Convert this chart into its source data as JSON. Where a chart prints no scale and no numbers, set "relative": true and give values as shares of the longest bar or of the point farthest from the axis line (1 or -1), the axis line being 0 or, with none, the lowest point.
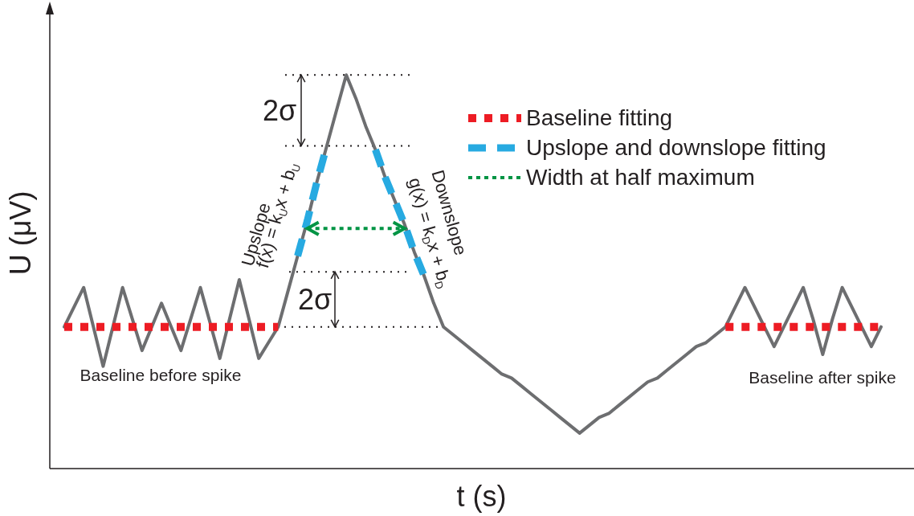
{
  "chart_data": {
    "type": "line",
    "relative": true,
    "xlabel": "t (s)",
    "ylabel": "U (μV)",
    "marker": "none",
    "legend": "top right",
    "categories": [
      null,
      null,
      null,
      null,
      null,
      null,
      null,
      null,
      null,
      null,
      null,
      null,
      null,
      null,
      null,
      null,
      null,
      null,
      null,
      null,
      null,
      null,
      null,
      null,
      null,
      null,
      null,
      null,
      null,
      null,
      null,
      null,
      null,
      null,
      null,
      null,
      null,
      null,
      null,
      null,
      null,
      null,
      null,
      null,
      null,
      null,
      null,
      null,
      null,
      null,
      null,
      null,
      null,
      null,
      null,
      null,
      null,
      null,
      null,
      null,
      null,
      null,
      null,
      null,
      null,
      null,
      null,
      null,
      null,
      null,
      null,
      null,
      null,
      null,
      null,
      null,
      null,
      null,
      null,
      null,
      null,
      null,
      null,
      null,
      null
    ],
    "series": [
      {
        "color": "#6d6e70",
        "line_style": "solid",
        "values": [
          0.36,
          0.41,
          0.46,
          0.36,
          0.26,
          0.36,
          0.46,
          0.38,
          0.3,
          0.36,
          0.42,
          0.36,
          0.3,
          0.38,
          0.46,
          0.37,
          0.28,
          0.38,
          0.48,
          0.38,
          0.28,
          0.32,
          0.36,
          0.45,
          0.54,
          0.63,
          0.73,
          0.82,
          0.91,
          1.0,
          0.94,
          0.87,
          0.81,
          0.74,
          0.68,
          0.62,
          0.55,
          0.49,
          0.42,
          0.36,
          0.34,
          0.32,
          0.3,
          0.28,
          0.26,
          0.24,
          0.23,
          0.21,
          0.19,
          0.17,
          0.15,
          0.13,
          0.11,
          0.09,
          0.11,
          0.13,
          0.14,
          0.16,
          0.18,
          0.2,
          0.22,
          0.23,
          0.25,
          0.27,
          0.29,
          0.31,
          0.32,
          0.34,
          0.36,
          0.41,
          0.46,
          0.41,
          0.36,
          0.31,
          0.36,
          0.41,
          0.46,
          0.38,
          0.29,
          0.38,
          0.46,
          0.41,
          0.36,
          0.31,
          0.36
        ]
      },
      {
        "name": "Baseline fitting",
        "color": "#ed1c24",
        "line_style": "dotted",
        "values": [
          0.36,
          0.36,
          0.36,
          0.36,
          0.36,
          0.36,
          0.36,
          0.36,
          0.36,
          0.36,
          0.36,
          0.36,
          0.36,
          0.36,
          0.36,
          0.36,
          0.36,
          0.36,
          0.36,
          0.36,
          0.36,
          0.36,
          0.36,
          null,
          null,
          null,
          null,
          null,
          null,
          null,
          null,
          null,
          null,
          null,
          null,
          null,
          null,
          null,
          null,
          null,
          null,
          null,
          null,
          null,
          null,
          null,
          null,
          null,
          null,
          null,
          null,
          null,
          null,
          null,
          null,
          null,
          null,
          null,
          null,
          null,
          null,
          null,
          null,
          null,
          null,
          null,
          null,
          null,
          0.36,
          0.36,
          0.36,
          0.36,
          0.36,
          0.36,
          0.36,
          0.36,
          0.36,
          0.36,
          0.36,
          0.36,
          0.36,
          0.36,
          0.36,
          0.36,
          0.36
        ]
      },
      {
        "name": "Upslope and downslope fitting",
        "color": "#27aae1",
        "line_style": "dashed",
        "values": [
          null,
          null,
          null,
          null,
          null,
          null,
          null,
          null,
          null,
          null,
          null,
          null,
          null,
          null,
          null,
          null,
          null,
          null,
          null,
          null,
          null,
          null,
          null,
          null,
          0.54,
          0.63,
          0.73,
          0.82,
          null,
          null,
          null,
          null,
          0.81,
          0.74,
          0.68,
          0.62,
          0.55,
          0.49,
          null,
          null,
          null,
          null,
          null,
          null,
          null,
          null,
          null,
          null,
          null,
          null,
          null,
          null,
          null,
          null,
          null,
          null,
          null,
          null,
          null,
          null,
          null,
          null,
          null,
          null,
          null,
          null,
          null,
          null,
          null,
          null,
          null,
          null,
          null,
          null,
          null,
          null,
          null,
          null,
          null,
          null,
          null,
          null,
          null,
          null,
          null
        ]
      },
      {
        "name": "Width at half maximum",
        "color": "#009444",
        "line_style": "dotted",
        "values": [
          null,
          null,
          null,
          null,
          null,
          null,
          null,
          null,
          null,
          null,
          null,
          null,
          null,
          null,
          null,
          null,
          null,
          null,
          null,
          null,
          null,
          null,
          null,
          null,
          null,
          0.61,
          0.61,
          0.61,
          0.61,
          0.61,
          0.61,
          0.61,
          0.61,
          0.61,
          0.61,
          0.61,
          null,
          null,
          null,
          null,
          null,
          null,
          null,
          null,
          null,
          null,
          null,
          null,
          null,
          null,
          null,
          null,
          null,
          null,
          null,
          null,
          null,
          null,
          null,
          null,
          null,
          null,
          null,
          null,
          null,
          null,
          null,
          null,
          null,
          null,
          null,
          null,
          null,
          null,
          null,
          null,
          null,
          null,
          null,
          null,
          null,
          null,
          null,
          null,
          null
        ]
      }
    ],
    "ref_lines": [
      {
        "axis": "y",
        "value": 1.0,
        "color": "#231f20",
        "line_style": "dotted"
      },
      {
        "axis": "y",
        "value": 0.82,
        "color": "#231f20",
        "line_style": "dotted"
      },
      {
        "axis": "y",
        "value": 0.5,
        "color": "#231f20",
        "line_style": "dotted"
      },
      {
        "axis": "y",
        "value": 0.36,
        "color": "#231f20",
        "line_style": "dotted"
      }
    ],
    "annotations": [
      "2σ",
      "2σ",
      "Upslope",
      "f(x) = k$_{U}$x + b$_{U}$",
      "Downslope",
      "g(x) = k$_{D}$x + b$_{D}$",
      "Baseline before spike",
      "Baseline after spike"
    ]
  }
}
